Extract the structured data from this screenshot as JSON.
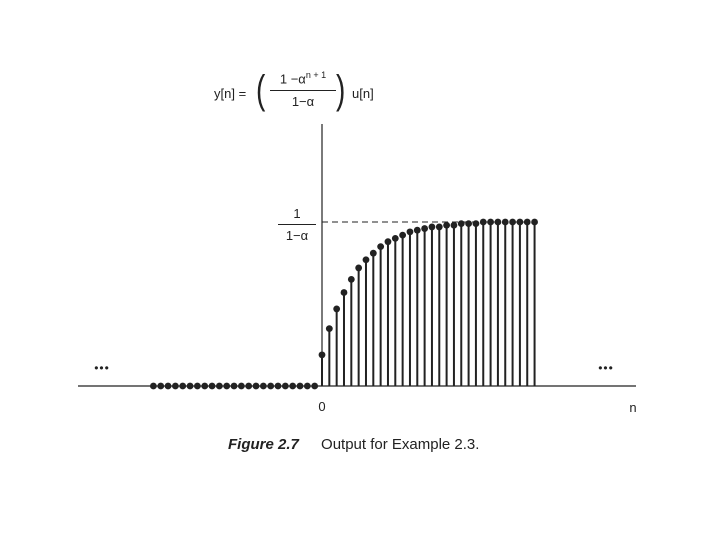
{
  "chart_data": {
    "type": "stem",
    "title": "",
    "formula": {
      "lhs": "y[n] =",
      "numerator": "1 −α",
      "numerator_exponent": "n + 1",
      "denominator": "1−α",
      "rhs": "u[n]"
    },
    "xlabel": "n",
    "ylabel": "",
    "x_ticks": [
      {
        "value": 0,
        "label": "0"
      }
    ],
    "y_ticks": [
      {
        "value": 1.0,
        "label_num": "1",
        "label_den": "1−α",
        "dashed_guide": true
      }
    ],
    "ylim": [
      0,
      1.15
    ],
    "xlim": [
      -26,
      40
    ],
    "series": [
      {
        "x": [
          -23,
          -22,
          -21,
          -20,
          -19,
          -18,
          -17,
          -16,
          -15,
          -14,
          -13,
          -12,
          -11,
          -10,
          -9,
          -8,
          -7,
          -6,
          -5,
          -4,
          -3,
          -2,
          -1,
          0,
          1,
          2,
          3,
          4,
          5,
          6,
          7,
          8,
          9,
          10,
          11,
          12,
          13,
          14,
          15,
          16,
          17,
          18,
          19,
          20,
          21,
          22,
          23,
          24,
          25,
          26,
          27,
          28,
          29
        ],
        "y": [
          0,
          0,
          0,
          0,
          0,
          0,
          0,
          0,
          0,
          0,
          0,
          0,
          0,
          0,
          0,
          0,
          0,
          0,
          0,
          0,
          0,
          0,
          0,
          0.19,
          0.35,
          0.47,
          0.57,
          0.65,
          0.72,
          0.77,
          0.81,
          0.85,
          0.88,
          0.9,
          0.92,
          0.94,
          0.95,
          0.96,
          0.97,
          0.97,
          0.98,
          0.98,
          0.99,
          0.99,
          0.99,
          1.0,
          1.0,
          1.0,
          1.0,
          1.0,
          1.0,
          1.0,
          1.0
        ]
      }
    ],
    "ellipsis_left": "•••",
    "ellipsis_right": "•••",
    "caption_label": "Figure 2.7",
    "caption_text": "Output for Example 2.3.",
    "colors": {
      "ink": "#222222"
    }
  }
}
